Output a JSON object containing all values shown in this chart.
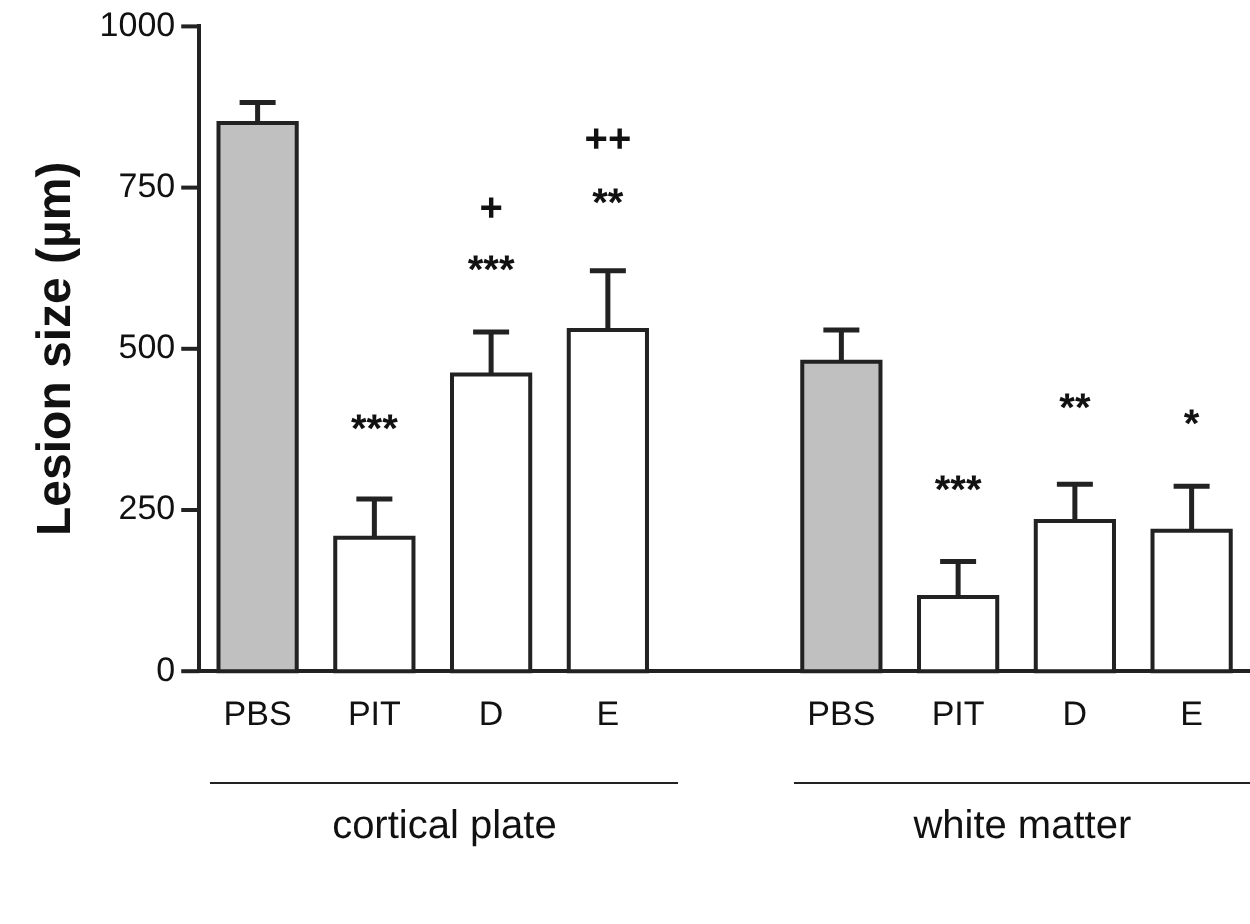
{
  "chart_data": {
    "type": "bar",
    "ylabel": "Lesion size (µm)",
    "categories": [
      "PBS",
      "PIT",
      "D",
      "E",
      null,
      "PBS",
      "PIT",
      "D",
      "E"
    ],
    "values": [
      850,
      207,
      460,
      529,
      null,
      480,
      115,
      233,
      218
    ],
    "colors": [
      "#c0c0c0",
      "#ffffff",
      "#ffffff",
      "#ffffff",
      "#ffffff",
      "#c0c0c0",
      "#ffffff",
      "#ffffff",
      "#ffffff"
    ],
    "errors": [
      [
        850,
        882
      ],
      [
        207,
        267
      ],
      [
        460,
        526
      ],
      [
        529,
        621
      ],
      null,
      [
        480,
        529
      ],
      [
        115,
        170
      ],
      [
        233,
        290
      ],
      [
        218,
        287
      ]
    ],
    "ylim": [
      0,
      1000
    ],
    "yticks": [
      0,
      250,
      500,
      750,
      1000
    ],
    "grid": false,
    "legend": false,
    "annotations": [
      "***",
      "***",
      "+",
      "**",
      "++",
      "***",
      "**",
      "*",
      "cortical plate",
      "white matter"
    ]
  }
}
